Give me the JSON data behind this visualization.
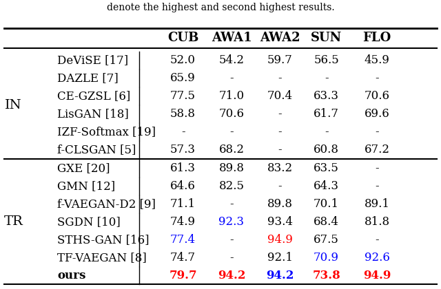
{
  "title_text": "denote the highest and second highest results.",
  "col_headers": [
    "",
    "CUB",
    "AWA1",
    "AWA2",
    "SUN",
    "FLO"
  ],
  "group_labels": [
    "IN",
    "TR"
  ],
  "rows": [
    {
      "group": "IN",
      "method": "DeViSE [17]",
      "vals": [
        "52.0",
        "54.2",
        "59.7",
        "56.5",
        "45.9"
      ],
      "colors": [
        "k",
        "k",
        "k",
        "k",
        "k"
      ],
      "bold": false
    },
    {
      "group": "IN",
      "method": "DAZLE [7]",
      "vals": [
        "65.9",
        "-",
        "-",
        "-",
        "-"
      ],
      "colors": [
        "k",
        "k",
        "k",
        "k",
        "k"
      ],
      "bold": false
    },
    {
      "group": "IN",
      "method": "CE-GZSL [6]",
      "vals": [
        "77.5",
        "71.0",
        "70.4",
        "63.3",
        "70.6"
      ],
      "colors": [
        "k",
        "k",
        "k",
        "k",
        "k"
      ],
      "bold": false
    },
    {
      "group": "IN",
      "method": "LisGAN [18]",
      "vals": [
        "58.8",
        "70.6",
        "-",
        "61.7",
        "69.6"
      ],
      "colors": [
        "k",
        "k",
        "k",
        "k",
        "k"
      ],
      "bold": false
    },
    {
      "group": "IN",
      "method": "IZF-Softmax [19]",
      "vals": [
        "-",
        "-",
        "-",
        "-",
        "-"
      ],
      "colors": [
        "k",
        "k",
        "k",
        "k",
        "k"
      ],
      "bold": false
    },
    {
      "group": "IN",
      "method": "f-CLSGAN [5]",
      "vals": [
        "57.3",
        "68.2",
        "-",
        "60.8",
        "67.2"
      ],
      "colors": [
        "k",
        "k",
        "k",
        "k",
        "k"
      ],
      "bold": false
    },
    {
      "group": "TR",
      "method": "GXE [20]",
      "vals": [
        "61.3",
        "89.8",
        "83.2",
        "63.5",
        "-"
      ],
      "colors": [
        "k",
        "k",
        "k",
        "k",
        "k"
      ],
      "bold": false
    },
    {
      "group": "TR",
      "method": "GMN [12]",
      "vals": [
        "64.6",
        "82.5",
        "-",
        "64.3",
        "-"
      ],
      "colors": [
        "k",
        "k",
        "k",
        "k",
        "k"
      ],
      "bold": false
    },
    {
      "group": "TR",
      "method": "f-VAEGAN-D2 [9]",
      "vals": [
        "71.1",
        "-",
        "89.8",
        "70.1",
        "89.1"
      ],
      "colors": [
        "k",
        "k",
        "k",
        "k",
        "k"
      ],
      "bold": false
    },
    {
      "group": "TR",
      "method": "SGDN [10]",
      "vals": [
        "74.9",
        "92.3",
        "93.4",
        "68.4",
        "81.8"
      ],
      "colors": [
        "k",
        "blue",
        "k",
        "k",
        "k"
      ],
      "bold": false
    },
    {
      "group": "TR",
      "method": "STHS-GAN [16]",
      "vals": [
        "77.4",
        "-",
        "94.9",
        "67.5",
        "-"
      ],
      "colors": [
        "blue",
        "k",
        "red",
        "k",
        "k"
      ],
      "bold": false
    },
    {
      "group": "TR",
      "method": "TF-VAEGAN [8]",
      "vals": [
        "74.7",
        "-",
        "92.1",
        "70.9",
        "92.6"
      ],
      "colors": [
        "k",
        "k",
        "k",
        "blue",
        "blue"
      ],
      "bold": false
    },
    {
      "group": "TR",
      "method": "ours",
      "vals": [
        "79.7",
        "94.2",
        "94.2",
        "73.8",
        "94.9"
      ],
      "colors": [
        "red",
        "red",
        "blue",
        "red",
        "red"
      ],
      "bold": true
    }
  ],
  "bg_color": "#ffffff",
  "header_fontsize": 13,
  "cell_fontsize": 12,
  "label_fontsize": 14,
  "color_map": {
    "k": "black",
    "blue": "#0000FF",
    "red": "#FF0000"
  }
}
